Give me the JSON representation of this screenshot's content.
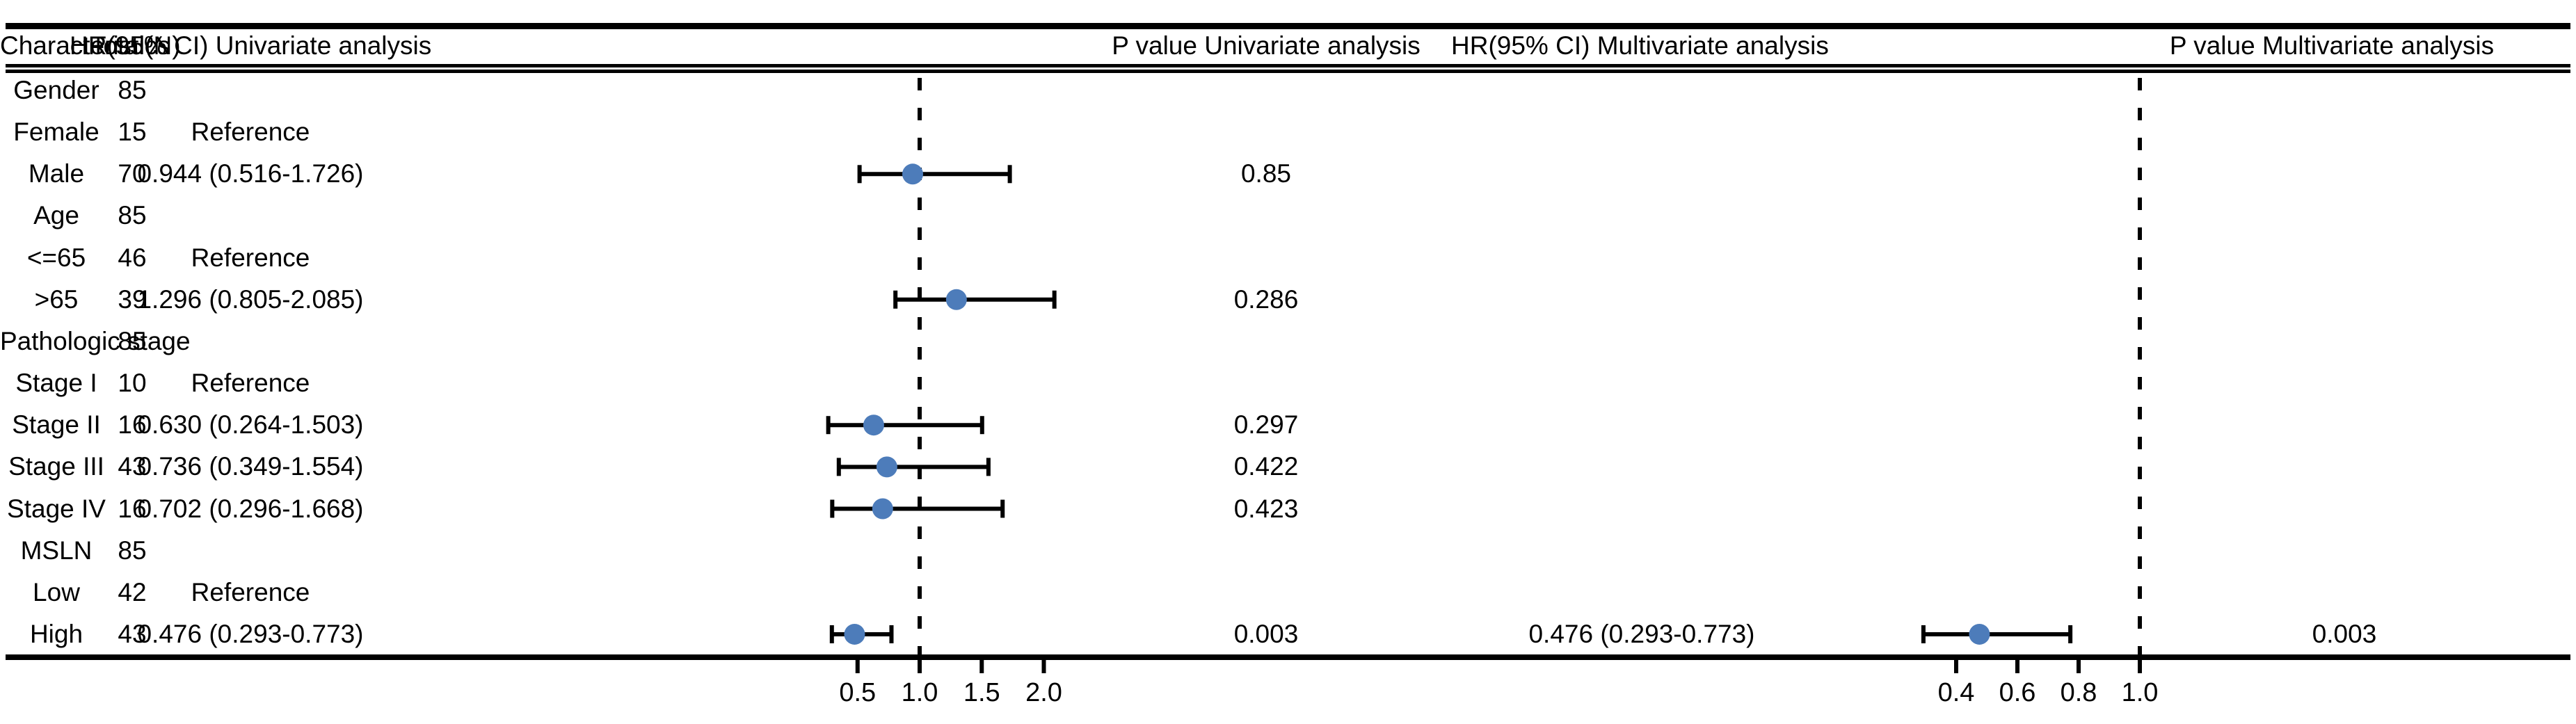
{
  "headers": {
    "characteristics": "Characteristics",
    "total": "Total(N)",
    "hr_univariate": "HR(95% CI) Univariate analysis",
    "p_univariate": "P value Univariate analysis",
    "hr_multivariate": "HR(95% CI) Multivariate analysis",
    "p_multivariate": "P value Multivariate analysis"
  },
  "chart_data": {
    "type": "forest",
    "title": "",
    "marker_color": "#4d7cba",
    "line_color": "#000000",
    "rows": [
      {
        "characteristic": "Gender",
        "total": "85",
        "hr_uni_text": "",
        "p_uni": "",
        "hr_multi_text": "",
        "p_multi": ""
      },
      {
        "characteristic": "Female",
        "total": "15",
        "hr_uni_text": "Reference",
        "p_uni": "",
        "hr_multi_text": "",
        "p_multi": ""
      },
      {
        "characteristic": "Male",
        "total": "70",
        "hr_uni_text": "0.944 (0.516-1.726)",
        "p_uni": "0.85",
        "hr_multi_text": "",
        "p_multi": "",
        "uni": {
          "hr": 0.944,
          "lo": 0.516,
          "hi": 1.726
        }
      },
      {
        "characteristic": "Age",
        "total": "85",
        "hr_uni_text": "",
        "p_uni": "",
        "hr_multi_text": "",
        "p_multi": ""
      },
      {
        "characteristic": "<=65",
        "total": "46",
        "hr_uni_text": "Reference",
        "p_uni": "",
        "hr_multi_text": "",
        "p_multi": ""
      },
      {
        "characteristic": ">65",
        "total": "39",
        "hr_uni_text": "1.296 (0.805-2.085)",
        "p_uni": "0.286",
        "hr_multi_text": "",
        "p_multi": "",
        "uni": {
          "hr": 1.296,
          "lo": 0.805,
          "hi": 2.085
        }
      },
      {
        "characteristic": "Pathologic stage",
        "total": "85",
        "hr_uni_text": "",
        "p_uni": "",
        "hr_multi_text": "",
        "p_multi": ""
      },
      {
        "characteristic": "Stage I",
        "total": "10",
        "hr_uni_text": "Reference",
        "p_uni": "",
        "hr_multi_text": "",
        "p_multi": ""
      },
      {
        "characteristic": "Stage II",
        "total": "16",
        "hr_uni_text": "0.630 (0.264-1.503)",
        "p_uni": "0.297",
        "hr_multi_text": "",
        "p_multi": "",
        "uni": {
          "hr": 0.63,
          "lo": 0.264,
          "hi": 1.503
        }
      },
      {
        "characteristic": "Stage III",
        "total": "43",
        "hr_uni_text": "0.736 (0.349-1.554)",
        "p_uni": "0.422",
        "hr_multi_text": "",
        "p_multi": "",
        "uni": {
          "hr": 0.736,
          "lo": 0.349,
          "hi": 1.554
        }
      },
      {
        "characteristic": "Stage IV",
        "total": "16",
        "hr_uni_text": "0.702 (0.296-1.668)",
        "p_uni": "0.423",
        "hr_multi_text": "",
        "p_multi": "",
        "uni": {
          "hr": 0.702,
          "lo": 0.296,
          "hi": 1.668
        }
      },
      {
        "characteristic": "MSLN",
        "total": "85",
        "hr_uni_text": "",
        "p_uni": "",
        "hr_multi_text": "",
        "p_multi": ""
      },
      {
        "characteristic": "Low",
        "total": "42",
        "hr_uni_text": "Reference",
        "p_uni": "",
        "hr_multi_text": "",
        "p_multi": ""
      },
      {
        "characteristic": "High",
        "total": "43",
        "hr_uni_text": "0.476 (0.293-0.773)",
        "p_uni": "0.003",
        "hr_multi_text": "0.476 (0.293-0.773)",
        "p_multi": "0.003",
        "uni": {
          "hr": 0.476,
          "lo": 0.293,
          "hi": 0.773
        },
        "multi": {
          "hr": 0.476,
          "lo": 0.293,
          "hi": 0.773
        }
      }
    ],
    "axes": {
      "univariate": {
        "tick_labels": [
          "0.5",
          "1.0",
          "1.5",
          "2.0"
        ],
        "tick_values": [
          0.5,
          1.0,
          1.5,
          2.0
        ],
        "ref_line": 1.0
      },
      "multivariate": {
        "tick_labels": [
          "0.4",
          "0.6",
          "0.8",
          "1.0"
        ],
        "tick_values": [
          0.4,
          0.6,
          0.8,
          1.0
        ],
        "ref_line": 1.0
      }
    }
  }
}
